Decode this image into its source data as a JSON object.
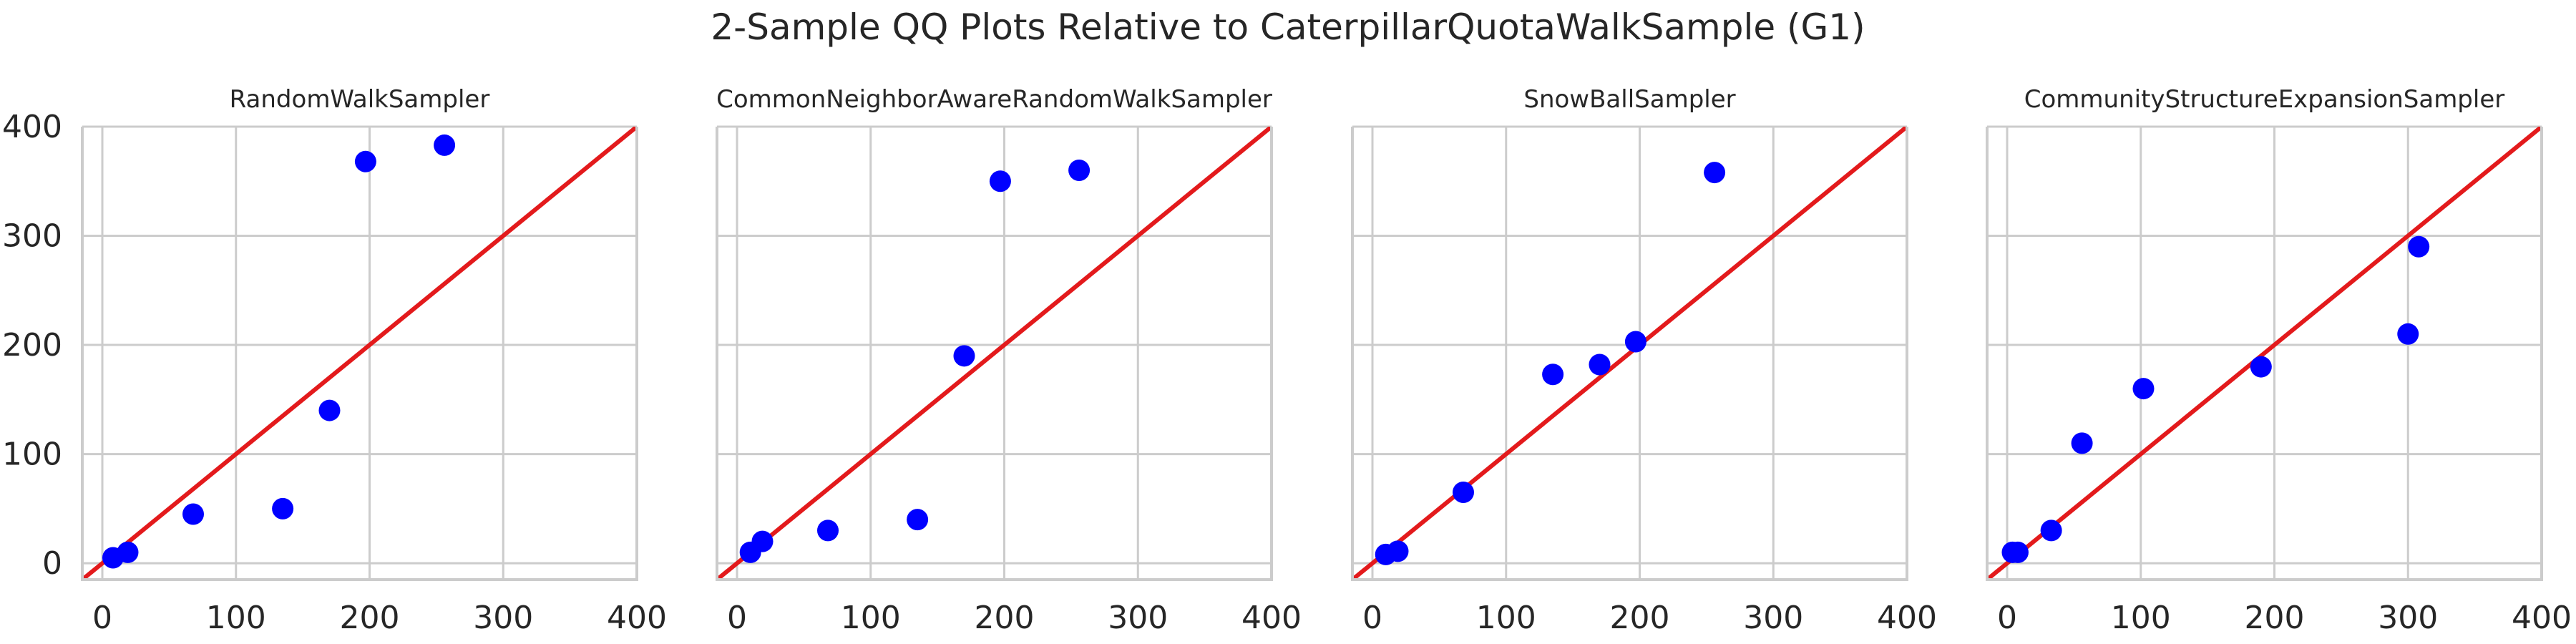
{
  "figure": {
    "title": "2-Sample QQ Plots Relative to CaterpillarQuotaWalkSample (G1)"
  },
  "chart_data": [
    {
      "type": "scatter",
      "title": "RandomWalkSampler",
      "xlabel": "",
      "ylabel": "",
      "xlim": [
        -15,
        400
      ],
      "ylim": [
        -15,
        400
      ],
      "xticks": [
        "0",
        "100",
        "200",
        "300",
        "400"
      ],
      "yticks": [
        "0",
        "100",
        "200",
        "300",
        "400"
      ],
      "grid": true,
      "point_color": "#0000ff",
      "line_color": "#e31a1c",
      "reference_line": "y = x",
      "x": [
        8,
        19,
        68,
        135,
        170,
        197,
        256
      ],
      "y": [
        5,
        10,
        45,
        50,
        140,
        368,
        383
      ]
    },
    {
      "type": "scatter",
      "title": "CommonNeighborAwareRandomWalkSampler",
      "xlabel": "",
      "ylabel": "",
      "xlim": [
        -15,
        400
      ],
      "ylim": [
        -15,
        400
      ],
      "xticks": [
        "0",
        "100",
        "200",
        "300",
        "400"
      ],
      "yticks": [],
      "grid": true,
      "point_color": "#0000ff",
      "line_color": "#e31a1c",
      "reference_line": "y = x",
      "x": [
        10,
        19,
        68,
        135,
        170,
        197,
        256
      ],
      "y": [
        10,
        20,
        30,
        40,
        190,
        350,
        360
      ]
    },
    {
      "type": "scatter",
      "title": "SnowBallSampler",
      "xlabel": "",
      "ylabel": "",
      "xlim": [
        -15,
        400
      ],
      "ylim": [
        -15,
        400
      ],
      "xticks": [
        "0",
        "100",
        "200",
        "300",
        "400"
      ],
      "yticks": [],
      "grid": true,
      "point_color": "#0000ff",
      "line_color": "#e31a1c",
      "reference_line": "y = x",
      "x": [
        10,
        19,
        68,
        135,
        170,
        197,
        256
      ],
      "y": [
        8,
        11,
        65,
        173,
        182,
        203,
        358
      ]
    },
    {
      "type": "scatter",
      "title": "CommunityStructureExpansionSampler",
      "xlabel": "",
      "ylabel": "",
      "xlim": [
        -15,
        400
      ],
      "ylim": [
        -15,
        400
      ],
      "xticks": [
        "0",
        "100",
        "200",
        "300",
        "400"
      ],
      "yticks": [],
      "grid": true,
      "point_color": "#0000ff",
      "line_color": "#e31a1c",
      "reference_line": "y = x",
      "x": [
        4,
        8,
        33,
        56,
        102,
        190,
        300,
        308
      ],
      "y": [
        10,
        10,
        30,
        110,
        160,
        180,
        210,
        290
      ]
    }
  ]
}
